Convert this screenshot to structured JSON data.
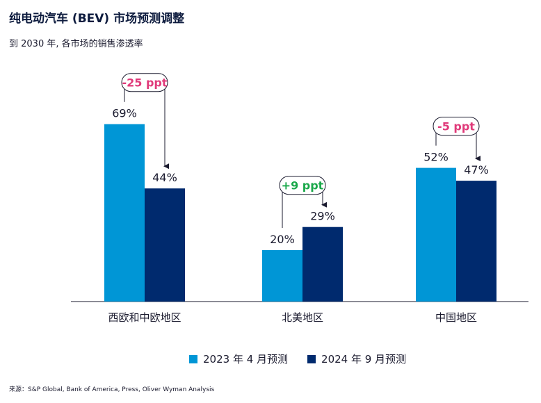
{
  "header": {
    "title": "纯电动汽车 (BEV) 市场预测调整",
    "subtitle": "到 2030 年, 各市场的销售渗透率"
  },
  "footer": {
    "source": "来源：S&P Global, Bank of America, Press, Oliver Wyman Analysis"
  },
  "colors": {
    "series_2023": "#0096d6",
    "series_2024": "#002a6e",
    "neg_change": "#e03a7a",
    "pos_change": "#1aa84a",
    "axis": "#1a1a2e"
  },
  "chart_data": {
    "type": "bar",
    "title": "纯电动汽车 (BEV) 市场预测调整",
    "subtitle": "到 2030 年, 各市场的销售渗透率",
    "categories": [
      "西欧和中欧地区",
      "北美地区",
      "中国地区"
    ],
    "series": [
      {
        "name": "2023 年 4 月预测",
        "values": [
          69,
          20,
          52
        ],
        "labels": [
          "69%",
          "20%",
          "52%"
        ]
      },
      {
        "name": "2024 年 9 月预测",
        "values": [
          44,
          29,
          47
        ],
        "labels": [
          "44%",
          "29%",
          "47%"
        ]
      }
    ],
    "changes": [
      {
        "label": "-25 ppt",
        "direction": "down"
      },
      {
        "label": "+9 ppt",
        "direction": "up"
      },
      {
        "label": "-5 ppt",
        "direction": "down"
      }
    ],
    "ylim": [
      0,
      100
    ],
    "grid": false,
    "legend": "bottom-center",
    "xlabel": "",
    "ylabel": ""
  }
}
